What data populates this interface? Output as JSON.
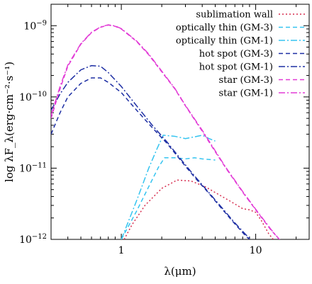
{
  "chart_data": {
    "type": "line",
    "title": "",
    "xlabel": "λ(μm)",
    "ylabel": "log λF_λ(erg·cm⁻²·s⁻¹)",
    "xscale": "log",
    "yscale": "log",
    "xlim": [
      0.3,
      25
    ],
    "ylim": [
      1e-12,
      2e-09
    ],
    "grid": false,
    "legend_position": "top-right",
    "x_ticks": [
      {
        "value": 1,
        "label": "1"
      },
      {
        "value": 10,
        "label": "10"
      }
    ],
    "y_ticks": [
      {
        "value": 1e-12,
        "base": "10",
        "exp": "−12"
      },
      {
        "value": 1e-11,
        "base": "10",
        "exp": "−11"
      },
      {
        "value": 1e-10,
        "base": "10",
        "exp": "−10"
      },
      {
        "value": 1e-09,
        "base": "10",
        "exp": "−9"
      }
    ],
    "series": [
      {
        "name": "sublimation wall",
        "color": "#d62d4f",
        "dash": "dotted",
        "points": [
          [
            1.05,
            1e-12
          ],
          [
            1.2,
            1.6e-12
          ],
          [
            1.5,
            3e-12
          ],
          [
            2.0,
            5.2e-12
          ],
          [
            2.6,
            6.8e-12
          ],
          [
            3.3,
            6.6e-12
          ],
          [
            4.2,
            5.5e-12
          ],
          [
            5.5,
            4.1e-12
          ],
          [
            6.7,
            3.3e-12
          ],
          [
            8.0,
            2.7e-12
          ],
          [
            9.0,
            2.6e-12
          ],
          [
            10.0,
            2.4e-12
          ],
          [
            11.0,
            1.85e-12
          ],
          [
            12.5,
            1.2e-12
          ],
          [
            13.5,
            1e-12
          ]
        ]
      },
      {
        "name": "optically thin (GM-3)",
        "color": "#35c4f0",
        "dash": "dashed",
        "points": [
          [
            1.0,
            1e-12
          ],
          [
            1.3,
            2.5e-12
          ],
          [
            1.6,
            5.5e-12
          ],
          [
            1.9,
            1.05e-11
          ],
          [
            2.1,
            1.4e-11
          ],
          [
            2.5,
            1.4e-11
          ],
          [
            3.0,
            1.35e-11
          ],
          [
            3.5,
            1.4e-11
          ],
          [
            4.0,
            1.35e-11
          ],
          [
            5.0,
            1.3e-11
          ]
        ]
      },
      {
        "name": "optically thin (GM-1)",
        "color": "#35c4f0",
        "dash": "dashdot",
        "points": [
          [
            1.0,
            1e-12
          ],
          [
            1.3,
            3.5e-12
          ],
          [
            1.6,
            1e-11
          ],
          [
            1.85,
            1.9e-11
          ],
          [
            2.05,
            2.9e-11
          ],
          [
            2.5,
            2.8e-11
          ],
          [
            3.0,
            2.6e-11
          ],
          [
            3.5,
            2.75e-11
          ],
          [
            4.0,
            2.9e-11
          ],
          [
            4.5,
            2.6e-11
          ],
          [
            5.0,
            2.4e-11
          ]
        ]
      },
      {
        "name": "hot spot (GM-3)",
        "color": "#1d2ea3",
        "dash": "dashed",
        "points": [
          [
            0.3,
            3e-11
          ],
          [
            0.35,
            6e-11
          ],
          [
            0.4,
            1e-10
          ],
          [
            0.5,
            1.55e-10
          ],
          [
            0.6,
            1.85e-10
          ],
          [
            0.7,
            1.85e-10
          ],
          [
            0.8,
            1.6e-10
          ],
          [
            1.0,
            1.15e-10
          ],
          [
            1.3,
            6.5e-11
          ],
          [
            1.7,
            3.7e-11
          ],
          [
            2.2,
            2.2e-11
          ],
          [
            2.8,
            1.25e-11
          ],
          [
            3.5,
            7.5e-12
          ],
          [
            4.5,
            4.4e-12
          ],
          [
            5.5,
            2.8e-12
          ],
          [
            7.0,
            1.65e-12
          ],
          [
            8.5,
            1.1e-12
          ],
          [
            9.0,
            1e-12
          ]
        ]
      },
      {
        "name": "hot spot (GM-1)",
        "color": "#1d2ea3",
        "dash": "dashdot",
        "points": [
          [
            0.3,
            6.5e-11
          ],
          [
            0.35,
            1.1e-10
          ],
          [
            0.4,
            1.6e-10
          ],
          [
            0.5,
            2.4e-10
          ],
          [
            0.6,
            2.75e-10
          ],
          [
            0.7,
            2.7e-10
          ],
          [
            0.8,
            2.2e-10
          ],
          [
            1.0,
            1.4e-10
          ],
          [
            1.3,
            7.5e-11
          ],
          [
            1.7,
            4e-11
          ],
          [
            2.2,
            2.3e-11
          ],
          [
            2.8,
            1.3e-11
          ],
          [
            3.5,
            7.8e-12
          ],
          [
            4.5,
            4.5e-12
          ],
          [
            5.5,
            2.9e-12
          ],
          [
            7.0,
            1.7e-12
          ],
          [
            8.5,
            1.15e-12
          ],
          [
            9.3,
            1e-12
          ]
        ]
      },
      {
        "name": "star (GM-3)",
        "color": "#e23bd6",
        "dash": "dashed",
        "points": [
          [
            0.3,
            5e-11
          ],
          [
            0.35,
            1.3e-10
          ],
          [
            0.4,
            2.7e-10
          ],
          [
            0.5,
            5.5e-10
          ],
          [
            0.6,
            8e-10
          ],
          [
            0.7,
            9.5e-10
          ],
          [
            0.8,
            1.02e-09
          ],
          [
            0.9,
            9.8e-10
          ],
          [
            1.0,
            9e-10
          ],
          [
            1.3,
            6e-10
          ],
          [
            1.6,
            3.9e-10
          ],
          [
            2.0,
            2.25e-10
          ],
          [
            2.5,
            1.3e-10
          ],
          [
            3.0,
            7.5e-11
          ],
          [
            4.0,
            3.3e-11
          ],
          [
            5.0,
            1.7e-11
          ],
          [
            6.0,
            1e-11
          ],
          [
            8.0,
            4.6e-12
          ],
          [
            10.0,
            2.6e-12
          ],
          [
            13.0,
            1.35e-12
          ],
          [
            15.0,
            1e-12
          ],
          [
            20.0,
            7e-13
          ]
        ]
      },
      {
        "name": "star (GM-1)",
        "color": "#e23bd6",
        "dash": "dashdot",
        "points": [
          [
            0.3,
            5.5e-11
          ],
          [
            0.35,
            1.4e-10
          ],
          [
            0.4,
            2.8e-10
          ],
          [
            0.5,
            5.6e-10
          ],
          [
            0.6,
            8.1e-10
          ],
          [
            0.7,
            9.6e-10
          ],
          [
            0.8,
            1.03e-09
          ],
          [
            0.9,
            9.9e-10
          ],
          [
            1.0,
            9.1e-10
          ],
          [
            1.3,
            6.1e-10
          ],
          [
            1.6,
            4e-10
          ],
          [
            2.0,
            2.3e-10
          ],
          [
            2.5,
            1.32e-10
          ],
          [
            3.0,
            7.6e-11
          ],
          [
            4.0,
            3.4e-11
          ],
          [
            5.0,
            1.75e-11
          ],
          [
            6.0,
            1.02e-11
          ],
          [
            8.0,
            4.7e-12
          ],
          [
            10.0,
            2.65e-12
          ],
          [
            13.0,
            1.38e-12
          ],
          [
            15.0,
            1e-12
          ],
          [
            20.0,
            7e-13
          ]
        ]
      }
    ]
  }
}
